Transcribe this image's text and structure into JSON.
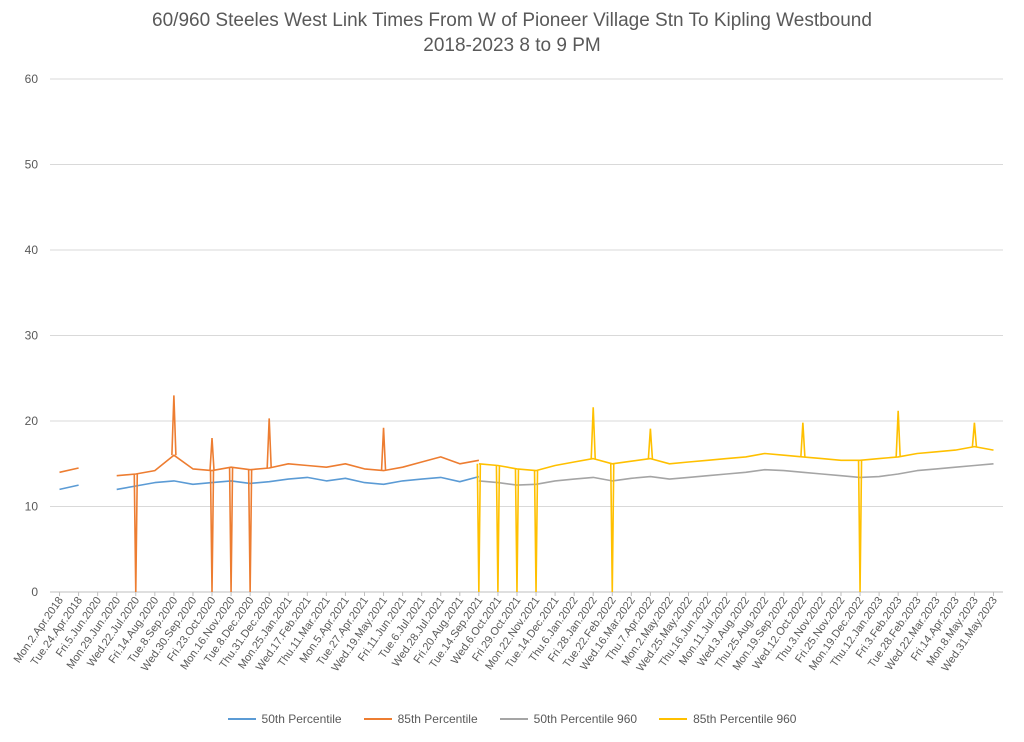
{
  "chart_data": {
    "type": "line",
    "title": "60/960 Steeles West Link Times From W of Pioneer Village Stn To Kipling Westbound",
    "subtitle": "2018-2023 8 to 9 PM",
    "xlabel": "",
    "ylabel": "",
    "ylim": [
      0,
      60
    ],
    "yticks": [
      0,
      10,
      20,
      30,
      40,
      50,
      60
    ],
    "grid": true,
    "legend": "bottom",
    "x_tick_labels": [
      "Mon.2.Apr.2018",
      "Tue.24.Apr.2018",
      "Fri.5.Jun.2020",
      "Mon.29.Jun.2020",
      "Wed.22.Jul.2020",
      "Fri.14.Aug.2020",
      "Tue.8.Sep.2020",
      "Wed.30.Sep.2020",
      "Fri.23.Oct.2020",
      "Mon.16.Nov.2020",
      "Tue.8.Dec.2020",
      "Thu.31.Dec.2020",
      "Mon.25.Jan.2021",
      "Wed.17.Feb.2021",
      "Thu.11.Mar.2021",
      "Mon.5.Apr.2021",
      "Tue.27.Apr.2021",
      "Wed.19.May.2021",
      "Fri.11.Jun.2021",
      "Tue.6.Jul.2021",
      "Wed.28.Jul.2021",
      "Fri.20.Aug.2021",
      "Tue.14.Sep.2021",
      "Wed.6.Oct.2021",
      "Fri.29.Oct.2021",
      "Mon.22.Nov.2021",
      "Tue.14.Dec.2021",
      "Thu.6.Jan.2022",
      "Fri.28.Jan.2022",
      "Tue.22.Feb.2022",
      "Wed.16.Mar.2022",
      "Thu.7.Apr.2022",
      "Mon.2.May.2022",
      "Wed.25.May.2022",
      "Thu.16.Jun.2022",
      "Mon.11.Jul.2022",
      "Wed.3.Aug.2022",
      "Thu.25.Aug.2022",
      "Mon.19.Sep.2022",
      "Wed.12.Oct.2022",
      "Thu.3.Nov.2022",
      "Fri.25.Nov.2022",
      "Mon.19.Dec.2022",
      "Thu.12.Jan.2023",
      "Fri.3.Feb.2023",
      "Tue.28.Feb.2023",
      "Wed.22.Mar.2023",
      "Fri.14.Apr.2023",
      "Mon.8.May.2023",
      "Wed.31.May.2023"
    ],
    "series": [
      {
        "name": "50th Percentile",
        "color": "#5B9BD5",
        "x": [
          "Mon.2.Apr.2018",
          "Tue.24.Apr.2018",
          "Fri.5.Jun.2020",
          "Mon.29.Jun.2020",
          "Wed.22.Jul.2020",
          "Fri.14.Aug.2020",
          "Tue.8.Sep.2020",
          "Wed.30.Sep.2020",
          "Fri.23.Oct.2020",
          "Mon.16.Nov.2020",
          "Tue.8.Dec.2020",
          "Thu.31.Dec.2020",
          "Mon.25.Jan.2021",
          "Wed.17.Feb.2021",
          "Thu.11.Mar.2021",
          "Mon.5.Apr.2021",
          "Tue.27.Apr.2021",
          "Wed.19.May.2021",
          "Fri.11.Jun.2021",
          "Tue.6.Jul.2021",
          "Wed.28.Jul.2021",
          "Fri.20.Aug.2021",
          "Tue.14.Sep.2021"
        ],
        "values": [
          12,
          12.5,
          null,
          12,
          12.4,
          12.8,
          13,
          12.6,
          12.8,
          13,
          12.7,
          12.9,
          13.2,
          13.4,
          13,
          13.3,
          12.8,
          12.6,
          13,
          13.2,
          13.4,
          12.9,
          13.5
        ]
      },
      {
        "name": "85th Percentile",
        "color": "#ED7D31",
        "x": [
          "Mon.2.Apr.2018",
          "Tue.24.Apr.2018",
          "Fri.5.Jun.2020",
          "Mon.29.Jun.2020",
          "Wed.22.Jul.2020",
          "Fri.14.Aug.2020",
          "Tue.8.Sep.2020",
          "Wed.30.Sep.2020",
          "Fri.23.Oct.2020",
          "Mon.16.Nov.2020",
          "Tue.8.Dec.2020",
          "Thu.31.Dec.2020",
          "Mon.25.Jan.2021",
          "Wed.17.Feb.2021",
          "Thu.11.Mar.2021",
          "Mon.5.Apr.2021",
          "Tue.27.Apr.2021",
          "Wed.19.May.2021",
          "Fri.11.Jun.2021",
          "Tue.6.Jul.2021",
          "Wed.28.Jul.2021",
          "Fri.20.Aug.2021",
          "Tue.14.Sep.2021"
        ],
        "values": [
          14,
          14.5,
          null,
          13.6,
          13.8,
          14.2,
          16,
          14.4,
          14.2,
          14.6,
          14.3,
          14.5,
          15,
          14.8,
          14.6,
          15,
          14.4,
          14.2,
          14.6,
          15.2,
          15.8,
          15,
          15.4
        ],
        "peaks": {
          "Tue.8.Sep.2020": 23,
          "Fri.23.Oct.2020": 18,
          "Thu.31.Dec.2020": 20.3,
          "Wed.19.May.2021": 19.2
        },
        "zero_drops": [
          "Wed.22.Jul.2020",
          "Fri.23.Oct.2020",
          "Mon.16.Nov.2020",
          "Tue.8.Dec.2020"
        ]
      },
      {
        "name": "50th Percentile 960",
        "color": "#A5A5A5",
        "x": [
          "Tue.14.Sep.2021",
          "Wed.6.Oct.2021",
          "Fri.29.Oct.2021",
          "Mon.22.Nov.2021",
          "Tue.14.Dec.2021",
          "Thu.6.Jan.2022",
          "Fri.28.Jan.2022",
          "Tue.22.Feb.2022",
          "Wed.16.Mar.2022",
          "Thu.7.Apr.2022",
          "Mon.2.May.2022",
          "Wed.25.May.2022",
          "Thu.16.Jun.2022",
          "Mon.11.Jul.2022",
          "Wed.3.Aug.2022",
          "Thu.25.Aug.2022",
          "Mon.19.Sep.2022",
          "Wed.12.Oct.2022",
          "Thu.3.Nov.2022",
          "Fri.25.Nov.2022",
          "Mon.19.Dec.2022",
          "Thu.12.Jan.2023",
          "Fri.3.Feb.2023",
          "Tue.28.Feb.2023",
          "Wed.22.Mar.2023",
          "Fri.14.Apr.2023",
          "Mon.8.May.2023",
          "Wed.31.May.2023"
        ],
        "values": [
          13,
          12.8,
          12.5,
          12.6,
          13,
          13.2,
          13.4,
          13,
          13.3,
          13.5,
          13.2,
          13.4,
          13.6,
          13.8,
          14,
          14.3,
          14.2,
          14,
          13.8,
          13.6,
          13.4,
          13.5,
          13.8,
          14.2,
          14.4,
          14.6,
          14.8,
          15
        ]
      },
      {
        "name": "85th Percentile 960",
        "color": "#FFC000",
        "x": [
          "Tue.14.Sep.2021",
          "Wed.6.Oct.2021",
          "Fri.29.Oct.2021",
          "Mon.22.Nov.2021",
          "Tue.14.Dec.2021",
          "Thu.6.Jan.2022",
          "Fri.28.Jan.2022",
          "Tue.22.Feb.2022",
          "Wed.16.Mar.2022",
          "Thu.7.Apr.2022",
          "Mon.2.May.2022",
          "Wed.25.May.2022",
          "Thu.16.Jun.2022",
          "Mon.11.Jul.2022",
          "Wed.3.Aug.2022",
          "Thu.25.Aug.2022",
          "Mon.19.Sep.2022",
          "Wed.12.Oct.2022",
          "Thu.3.Nov.2022",
          "Fri.25.Nov.2022",
          "Mon.19.Dec.2022",
          "Thu.12.Jan.2023",
          "Fri.3.Feb.2023",
          "Tue.28.Feb.2023",
          "Wed.22.Mar.2023",
          "Fri.14.Apr.2023",
          "Mon.8.May.2023",
          "Wed.31.May.2023"
        ],
        "values": [
          15,
          14.8,
          14.4,
          14.2,
          14.8,
          15.2,
          15.6,
          15,
          15.3,
          15.6,
          15,
          15.2,
          15.4,
          15.6,
          15.8,
          16.2,
          16,
          15.8,
          15.6,
          15.4,
          15.4,
          15.6,
          15.8,
          16.2,
          16.4,
          16.6,
          17,
          16.6
        ],
        "peaks": {
          "Fri.28.Jan.2022": 21.6,
          "Thu.7.Apr.2022": 19.1,
          "Wed.12.Oct.2022": 19.8,
          "Fri.3.Feb.2023": 21.2,
          "Mon.8.May.2023": 19.8
        },
        "zero_drops": [
          "Tue.14.Sep.2021",
          "Wed.6.Oct.2021",
          "Fri.29.Oct.2021",
          "Mon.22.Nov.2021",
          "Tue.22.Feb.2022",
          "Mon.19.Dec.2022"
        ]
      }
    ]
  }
}
